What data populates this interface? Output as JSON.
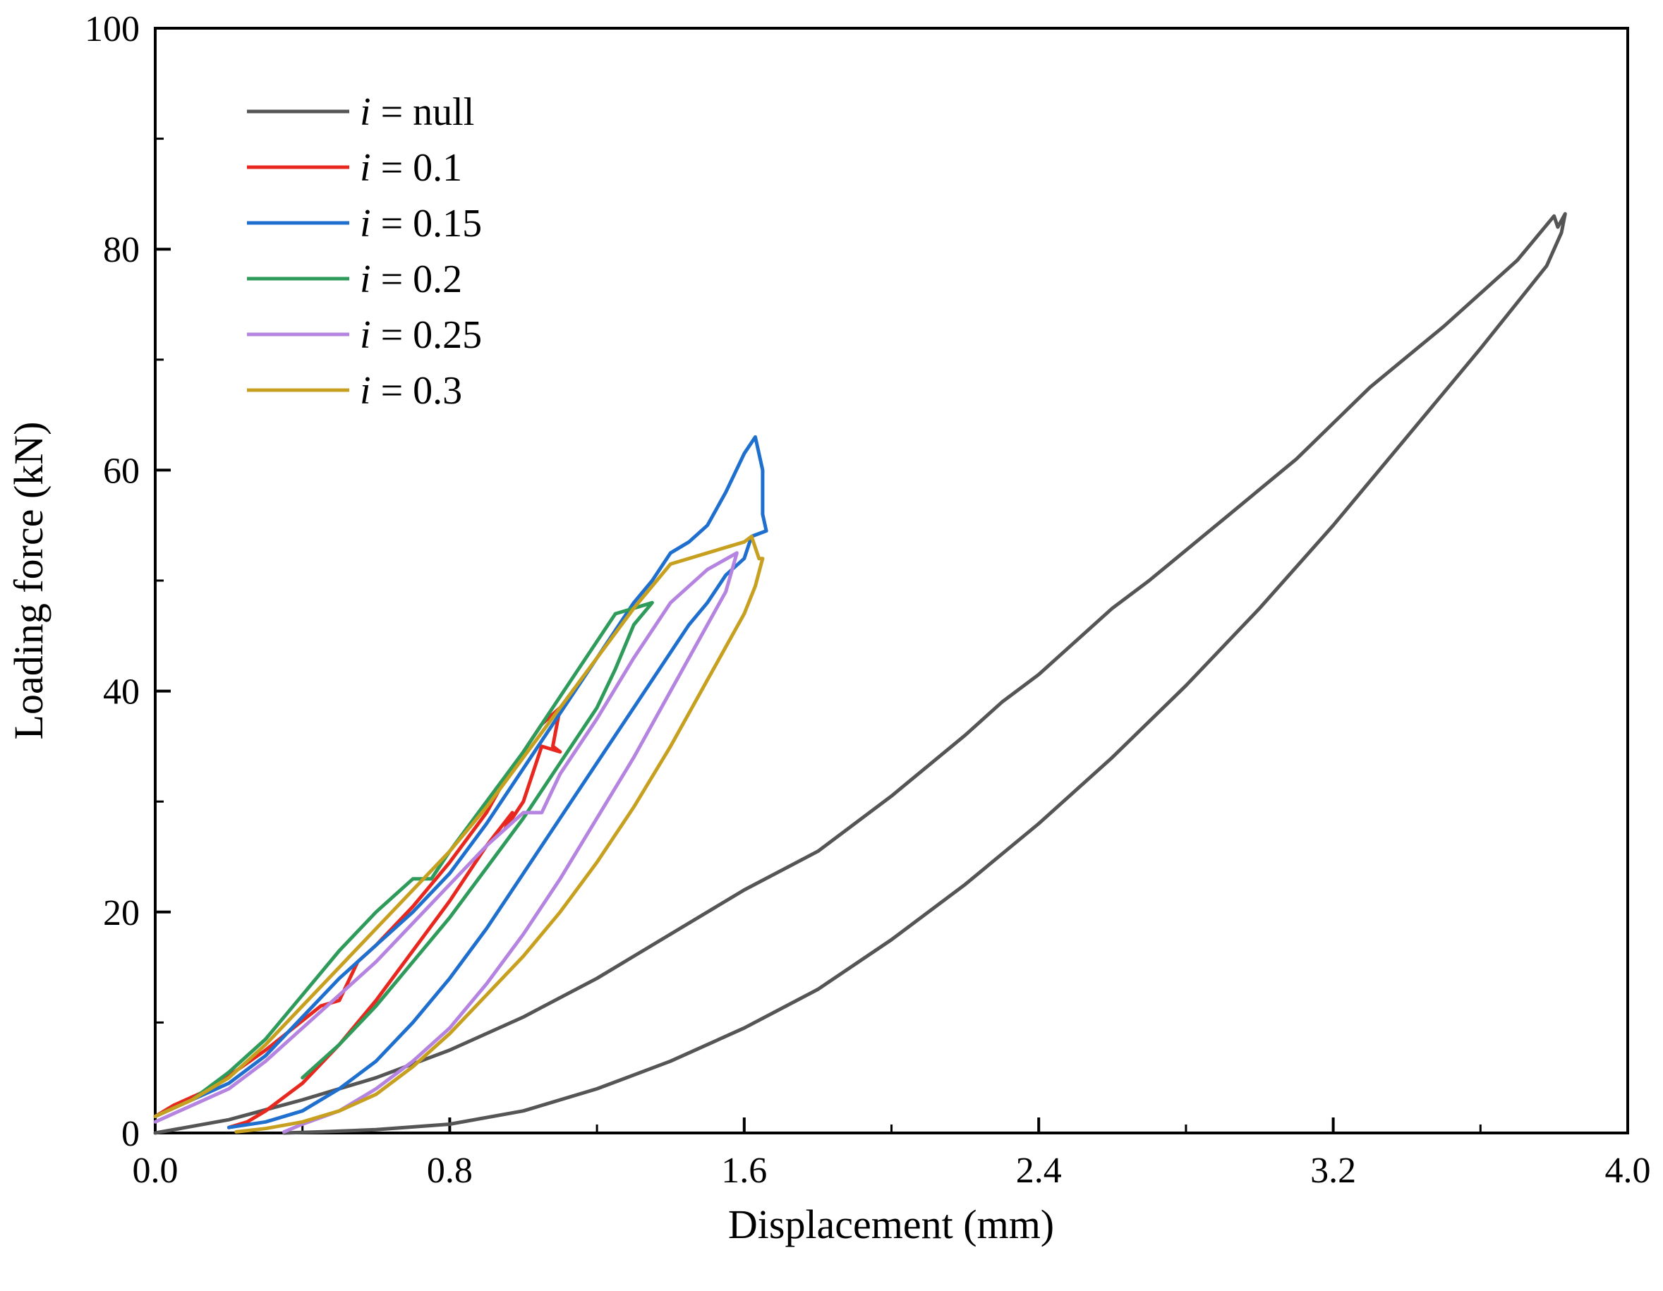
{
  "chart_data": {
    "type": "line",
    "title": "",
    "xlabel": "Displacement (mm)",
    "ylabel": "Loading force (kN)",
    "xlim": [
      0,
      4.0
    ],
    "ylim": [
      0,
      100
    ],
    "xticks": [
      0.0,
      0.8,
      1.6,
      2.4,
      3.2,
      4.0
    ],
    "xtick_labels": [
      "0.0",
      "0.8",
      "1.6",
      "2.4",
      "3.2",
      "4.0"
    ],
    "yticks": [
      0,
      20,
      40,
      60,
      80,
      100
    ],
    "ytick_labels": [
      "0",
      "20",
      "40",
      "60",
      "80",
      "100"
    ],
    "grid": false,
    "legend_position": "top-left",
    "series": [
      {
        "name_var": "i",
        "name_rest": " = null",
        "color": "#555555",
        "x": [
          0,
          0.2,
          0.4,
          0.6,
          0.8,
          1.0,
          1.2,
          1.4,
          1.6,
          1.8,
          2.0,
          2.2,
          2.3,
          2.4,
          2.6,
          2.7,
          2.9,
          3.1,
          3.3,
          3.5,
          3.7,
          3.8,
          3.81,
          3.83,
          3.82,
          3.78,
          3.6,
          3.4,
          3.2,
          3.0,
          2.8,
          2.6,
          2.4,
          2.2,
          2.0,
          1.8,
          1.6,
          1.4,
          1.2,
          1.0,
          0.8,
          0.6,
          0.45,
          0.35
        ],
        "y": [
          0,
          1.2,
          3.0,
          5.0,
          7.5,
          10.5,
          14.0,
          18.0,
          22.0,
          25.5,
          30.5,
          36.0,
          39.0,
          41.5,
          47.5,
          50.0,
          55.5,
          61.0,
          67.5,
          73.0,
          79.0,
          83.0,
          82.0,
          83.2,
          81.5,
          78.5,
          71.0,
          63.0,
          55.0,
          47.5,
          40.5,
          34.0,
          28.0,
          22.5,
          17.5,
          13.0,
          9.5,
          6.5,
          4.0,
          2.0,
          0.8,
          0.3,
          0.1,
          0
        ]
      },
      {
        "name_var": "i",
        "name_rest": " = 0.1",
        "color": "#e8271f",
        "x": [
          0,
          0.05,
          0.15,
          0.3,
          0.45,
          0.5,
          0.55,
          0.6,
          0.7,
          0.8,
          0.9,
          0.95,
          1.0,
          1.05,
          1.1,
          1.08,
          1.1,
          1.05,
          1.0,
          0.95,
          0.97,
          0.9,
          0.8,
          0.7,
          0.6,
          0.5,
          0.4,
          0.3,
          0.25,
          0.2
        ],
        "y": [
          1.5,
          2.5,
          4.0,
          7.5,
          11.5,
          12.0,
          15.5,
          17.0,
          20.5,
          24.5,
          29.0,
          32.0,
          34.5,
          37.0,
          38.5,
          35.0,
          34.5,
          35.0,
          30.0,
          27.5,
          29.0,
          26.0,
          21.0,
          16.5,
          12.0,
          8.0,
          4.5,
          2.0,
          1.0,
          0.5
        ]
      },
      {
        "name_var": "i",
        "name_rest": " = 0.15",
        "color": "#1f6fcf",
        "x": [
          0,
          0.1,
          0.2,
          0.3,
          0.4,
          0.5,
          0.6,
          0.7,
          0.8,
          0.9,
          1.0,
          1.1,
          1.2,
          1.3,
          1.35,
          1.4,
          1.45,
          1.5,
          1.55,
          1.6,
          1.63,
          1.65,
          1.65,
          1.66,
          1.62,
          1.6,
          1.55,
          1.5,
          1.45,
          1.4,
          1.3,
          1.2,
          1.1,
          1.0,
          0.9,
          0.8,
          0.7,
          0.6,
          0.5,
          0.4,
          0.3,
          0.2
        ],
        "y": [
          1.5,
          3.0,
          4.5,
          7.0,
          10.5,
          14.0,
          17.0,
          20.0,
          23.5,
          28.0,
          33.0,
          38.0,
          43.0,
          48.0,
          50.0,
          52.5,
          53.5,
          55.0,
          58.0,
          61.5,
          63.0,
          60.0,
          56.0,
          54.5,
          54.0,
          52.0,
          50.5,
          48.0,
          46.0,
          43.5,
          38.5,
          33.5,
          28.5,
          23.5,
          18.5,
          14.0,
          10.0,
          6.5,
          4.0,
          2.0,
          1.0,
          0.5
        ]
      },
      {
        "name_var": "i",
        "name_rest": " = 0.2",
        "color": "#2e9b5a",
        "x": [
          0,
          0.1,
          0.2,
          0.3,
          0.4,
          0.5,
          0.6,
          0.7,
          0.75,
          0.8,
          0.9,
          1.0,
          1.1,
          1.2,
          1.25,
          1.3,
          1.35,
          1.3,
          1.25,
          1.2,
          1.1,
          1.0,
          0.9,
          0.8,
          0.7,
          0.6,
          0.5,
          0.4
        ],
        "y": [
          1.5,
          3.0,
          5.5,
          8.5,
          12.5,
          16.5,
          20.0,
          23.0,
          23.0,
          25.5,
          30.0,
          34.5,
          39.5,
          44.5,
          47.0,
          47.5,
          48.0,
          46.0,
          42.0,
          38.5,
          33.5,
          28.5,
          24.0,
          19.5,
          15.5,
          11.5,
          8.0,
          5.0
        ]
      },
      {
        "name_var": "i",
        "name_rest": " = 0.25",
        "color": "#b584e0",
        "x": [
          0,
          0.1,
          0.2,
          0.3,
          0.4,
          0.5,
          0.6,
          0.7,
          0.8,
          0.9,
          1.0,
          1.05,
          1.1,
          1.2,
          1.3,
          1.4,
          1.5,
          1.58,
          1.55,
          1.5,
          1.4,
          1.3,
          1.2,
          1.1,
          1.0,
          0.9,
          0.8,
          0.7,
          0.6,
          0.5,
          0.4,
          0.35
        ],
        "y": [
          1.0,
          2.5,
          4.0,
          6.5,
          9.5,
          12.5,
          15.5,
          19.0,
          22.5,
          26.0,
          29.0,
          29.0,
          32.5,
          37.5,
          43.0,
          48.0,
          51.0,
          52.5,
          49.0,
          46.0,
          40.0,
          34.0,
          28.5,
          23.0,
          18.0,
          13.5,
          9.5,
          6.5,
          4.0,
          2.0,
          0.8,
          0.1
        ]
      },
      {
        "name_var": "i",
        "name_rest": " = 0.3",
        "color": "#c8a020",
        "x": [
          0,
          0.1,
          0.2,
          0.3,
          0.4,
          0.5,
          0.6,
          0.7,
          0.8,
          0.9,
          1.0,
          1.1,
          1.2,
          1.3,
          1.4,
          1.5,
          1.6,
          1.62,
          1.64,
          1.65,
          1.63,
          1.6,
          1.5,
          1.4,
          1.3,
          1.2,
          1.1,
          1.0,
          0.9,
          0.8,
          0.7,
          0.6,
          0.5,
          0.4,
          0.3,
          0.22
        ],
        "y": [
          1.5,
          3.0,
          5.0,
          8.0,
          11.5,
          15.0,
          18.5,
          22.0,
          25.5,
          29.5,
          34.0,
          38.5,
          43.0,
          47.5,
          51.5,
          52.5,
          53.5,
          54.0,
          52.0,
          52.0,
          49.5,
          47.0,
          41.0,
          35.0,
          29.5,
          24.5,
          20.0,
          16.0,
          12.5,
          9.0,
          6.0,
          3.5,
          2.0,
          1.0,
          0.4,
          0.1
        ]
      }
    ]
  }
}
